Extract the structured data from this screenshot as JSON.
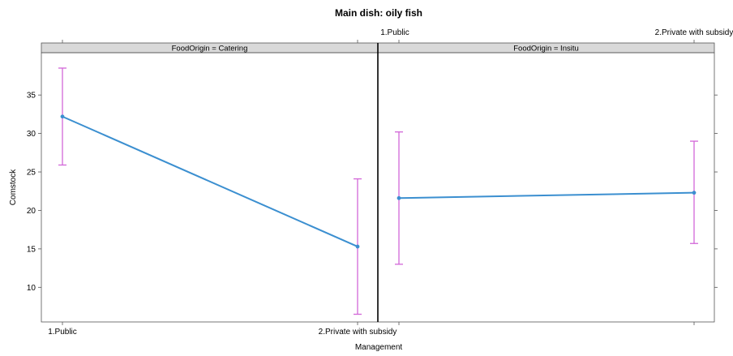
{
  "chart_data": {
    "type": "line",
    "title": "Main dish: oily fish",
    "xlabel": "Management",
    "ylabel": "Comstock",
    "categories": [
      "1.Public",
      "2.Private with subsidy"
    ],
    "ylim": [
      5.5,
      40.5
    ],
    "yticks": [
      10,
      15,
      20,
      25,
      30,
      35
    ],
    "panels": [
      {
        "strip": "FoodOrigin = Catering",
        "values": [
          32.2,
          15.3
        ],
        "lower": [
          25.9,
          6.5
        ],
        "upper": [
          38.5,
          24.1
        ]
      },
      {
        "strip": "FoodOrigin = Insitu",
        "values": [
          21.6,
          22.3
        ],
        "lower": [
          13.0,
          15.7
        ],
        "upper": [
          30.2,
          29.0
        ]
      }
    ],
    "colors": {
      "line": "#3b8fd0",
      "errorbar": "#d266d8",
      "strip": "#d9d9d9",
      "frame": "#000000"
    },
    "grid": false,
    "legend": "none"
  }
}
